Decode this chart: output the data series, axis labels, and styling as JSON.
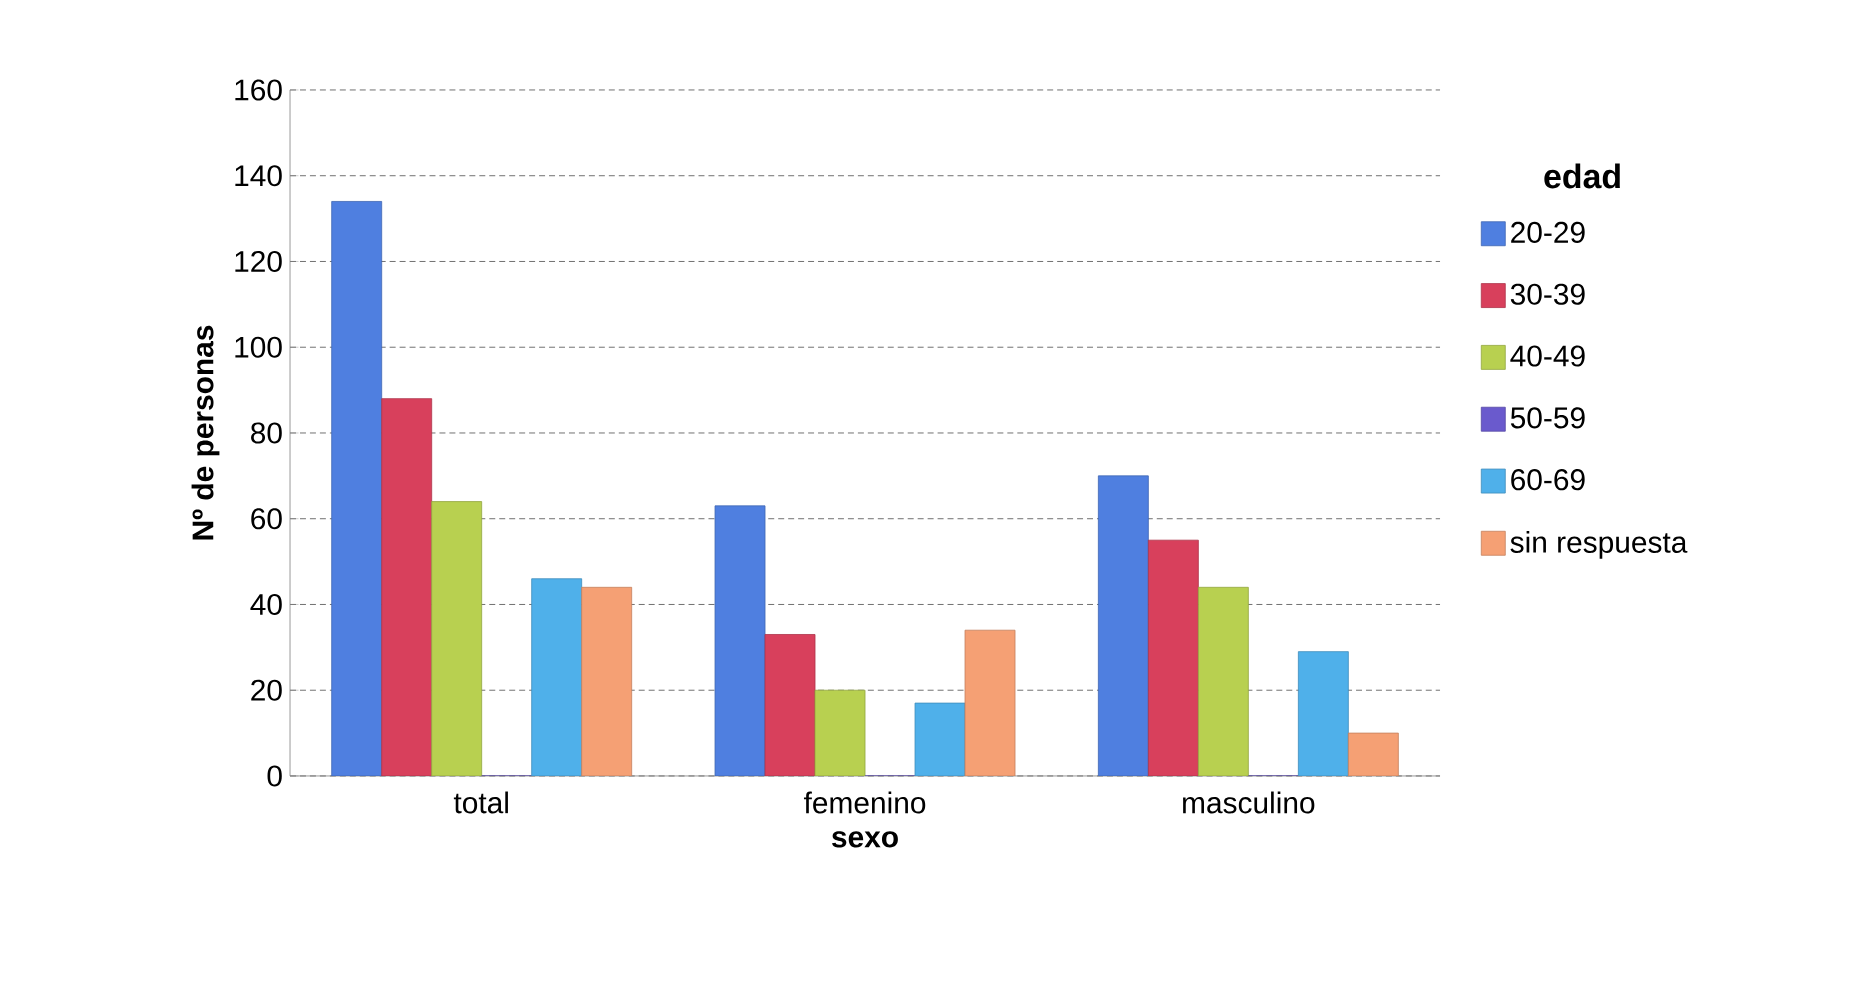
{
  "chart_data": {
    "type": "bar",
    "xlabel": "sexo",
    "ylabel": "Nº de personas",
    "legend_title": "edad",
    "categories": [
      "total",
      "femenino",
      "masculino"
    ],
    "series": [
      {
        "name": "20-29",
        "color": "#4f7fe0",
        "values": [
          134,
          63,
          70
        ]
      },
      {
        "name": "30-39",
        "color": "#d8405c",
        "values": [
          88,
          33,
          55
        ]
      },
      {
        "name": "40-49",
        "color": "#b8d050",
        "values": [
          64,
          20,
          44
        ]
      },
      {
        "name": "50-59",
        "color": "#6a5acd",
        "values": [
          0,
          0,
          0
        ]
      },
      {
        "name": "60-69",
        "color": "#4fb0ea",
        "values": [
          46,
          17,
          29
        ]
      },
      {
        "name": "sin respuesta",
        "color": "#f5a074",
        "values": [
          44,
          34,
          10
        ]
      }
    ],
    "ylim": [
      0,
      160
    ],
    "yticks": [
      0,
      20,
      40,
      60,
      80,
      100,
      120,
      140,
      160
    ],
    "grid": "y",
    "legend": "right"
  }
}
